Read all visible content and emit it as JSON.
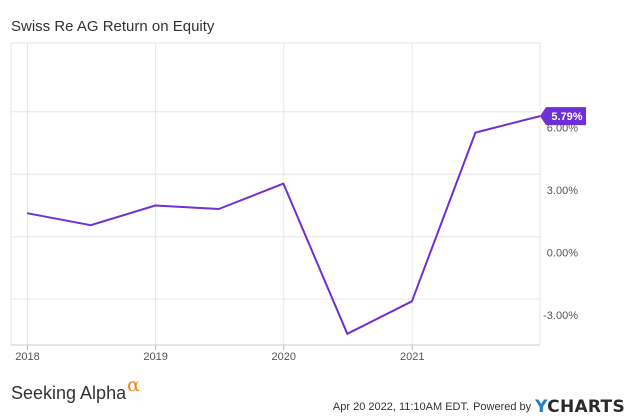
{
  "chart_data": {
    "type": "line",
    "title": "Swiss Re AG Return on Equity",
    "x": [
      "2017-12-31",
      "2018-06-30",
      "2018-12-31",
      "2019-06-30",
      "2019-12-31",
      "2020-06-30",
      "2020-12-31",
      "2021-06-30",
      "2021-12-31"
    ],
    "series": [
      {
        "values": [
          1.13,
          0.55,
          1.5,
          1.33,
          2.55,
          -4.66,
          -3.1,
          5.0,
          5.79
        ]
      }
    ],
    "xticks": [
      "2018",
      "2019",
      "2020",
      "2021"
    ],
    "yticks": [
      "-3.00%",
      "0.00%",
      "3.00%",
      "6.00%"
    ],
    "ylim": [
      -5.2,
      9.3
    ],
    "grid": true,
    "last_value_label": "5.79%",
    "colors": {
      "line": "#6f2fd6",
      "flag": "#6f2fd6",
      "grid": "#e6e6e6"
    }
  },
  "footer": {
    "brand_text": "Seeking Alpha",
    "brand_mark": "α",
    "timestamp": "Apr 20 2022, 11:10AM EDT.",
    "powered_by": "Powered by",
    "logo_y": "Y",
    "logo_rest": "CHARTS"
  }
}
